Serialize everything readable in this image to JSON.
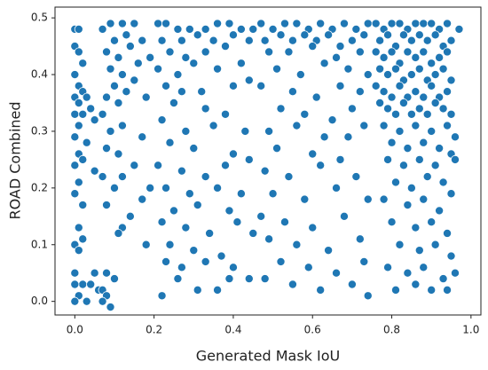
{
  "chart_data": {
    "type": "scatter",
    "x_label": "Generated Mask IoU",
    "y_label": "ROAD Combined",
    "color": "#1f77b4",
    "xlim": [
      -0.05,
      1.025
    ],
    "ylim": [
      -0.024,
      0.519
    ],
    "xticks": [
      {
        "value": 0.0,
        "label": "0.0"
      },
      0.2,
      0.4,
      0.6,
      0.8,
      {
        "value": 1.0,
        "label": "1.0"
      }
    ],
    "yticks": [
      {
        "value": 0.0,
        "label": "0.0"
      },
      0.1,
      0.2,
      0.3,
      0.4,
      0.5
    ],
    "x": [
      0.0,
      0.01,
      0.0,
      0.01,
      0.02,
      0.0,
      0.01,
      0.02,
      0.0,
      0.03,
      0.01,
      0.04,
      0.0,
      0.02,
      0.05,
      0.01,
      0.0,
      0.03,
      0.01,
      0.02,
      0.0,
      0.05,
      0.01,
      0.0,
      0.02,
      0.01,
      0.02,
      0.0,
      0.01,
      0.0,
      0.02,
      0.05,
      0.0,
      0.04,
      0.01,
      0.03,
      0.06,
      0.0,
      0.07,
      0.09,
      0.12,
      0.15,
      0.1,
      0.13,
      0.08,
      0.11,
      0.14,
      0.17,
      0.09,
      0.12,
      0.16,
      0.19,
      0.1,
      0.13,
      0.18,
      0.08,
      0.11,
      0.15,
      0.07,
      0.09,
      0.12,
      0.17,
      0.08,
      0.11,
      0.15,
      0.07,
      0.1,
      0.12,
      0.19,
      0.08,
      0.14,
      0.17,
      0.12,
      0.11,
      0.18,
      0.08,
      0.1,
      0.07,
      0.08,
      0.09,
      0.07,
      0.21,
      0.23,
      0.26,
      0.29,
      0.33,
      0.36,
      0.39,
      0.42,
      0.45,
      0.22,
      0.27,
      0.31,
      0.35,
      0.4,
      0.44,
      0.24,
      0.28,
      0.33,
      0.38,
      0.21,
      0.26,
      0.3,
      0.36,
      0.42,
      0.23,
      0.27,
      0.32,
      0.4,
      0.44,
      0.25,
      0.33,
      0.38,
      0.22,
      0.28,
      0.35,
      0.43,
      0.24,
      0.3,
      0.4,
      0.21,
      0.27,
      0.33,
      0.38,
      0.44,
      0.23,
      0.29,
      0.36,
      0.42,
      0.25,
      0.31,
      0.39,
      0.22,
      0.28,
      0.34,
      0.41,
      0.45,
      0.24,
      0.3,
      0.37,
      0.23,
      0.27,
      0.33,
      0.4,
      0.44,
      0.26,
      0.31,
      0.22,
      0.36,
      0.39,
      0.47,
      0.5,
      0.53,
      0.56,
      0.59,
      0.62,
      0.65,
      0.68,
      0.71,
      0.74,
      0.48,
      0.52,
      0.55,
      0.58,
      0.61,
      0.64,
      0.67,
      0.7,
      0.73,
      0.49,
      0.54,
      0.6,
      0.66,
      0.72,
      0.51,
      0.57,
      0.63,
      0.69,
      0.74,
      0.47,
      0.55,
      0.61,
      0.67,
      0.72,
      0.52,
      0.58,
      0.65,
      0.7,
      0.49,
      0.56,
      0.63,
      0.69,
      0.73,
      0.51,
      0.6,
      0.67,
      0.48,
      0.54,
      0.62,
      0.71,
      0.5,
      0.58,
      0.66,
      0.74,
      0.47,
      0.53,
      0.6,
      0.68,
      0.49,
      0.56,
      0.64,
      0.72,
      0.52,
      0.59,
      0.66,
      0.73,
      0.48,
      0.55,
      0.62,
      0.7,
      0.74,
      0.76,
      0.78,
      0.8,
      0.82,
      0.84,
      0.86,
      0.88,
      0.9,
      0.92,
      0.94,
      0.97,
      0.77,
      0.79,
      0.81,
      0.83,
      0.85,
      0.87,
      0.89,
      0.91,
      0.93,
      0.95,
      0.76,
      0.78,
      0.8,
      0.82,
      0.84,
      0.86,
      0.88,
      0.9,
      0.92,
      0.94,
      0.77,
      0.79,
      0.81,
      0.83,
      0.85,
      0.87,
      0.89,
      0.91,
      0.93,
      0.95,
      0.76,
      0.78,
      0.8,
      0.82,
      0.84,
      0.86,
      0.88,
      0.9,
      0.92,
      0.94,
      0.77,
      0.79,
      0.81,
      0.83,
      0.85,
      0.87,
      0.89,
      0.91,
      0.93,
      0.95,
      0.78,
      0.82,
      0.86,
      0.9,
      0.94,
      0.96,
      0.8,
      0.84,
      0.88,
      0.92,
      0.95,
      0.79,
      0.83,
      0.87,
      0.91,
      0.96,
      0.81,
      0.85,
      0.89,
      0.93,
      0.78,
      0.84,
      0.88,
      0.92,
      0.95,
      0.8,
      0.86,
      0.9,
      0.94,
      0.82,
      0.87,
      0.91,
      0.95,
      0.79,
      0.84,
      0.88,
      0.93,
      0.96,
      0.81,
      0.86,
      0.9,
      0.94
    ],
    "values": [
      0.48,
      0.48,
      0.45,
      0.44,
      0.42,
      0.4,
      0.38,
      0.37,
      0.36,
      0.36,
      0.35,
      0.34,
      0.33,
      0.33,
      0.32,
      0.31,
      0.29,
      0.28,
      0.26,
      0.25,
      0.24,
      0.23,
      0.21,
      0.19,
      0.17,
      0.13,
      0.11,
      0.1,
      0.09,
      0.05,
      0.03,
      0.05,
      0.03,
      0.03,
      0.01,
      0.0,
      0.02,
      0.0,
      0.48,
      0.49,
      0.49,
      0.49,
      0.46,
      0.47,
      0.44,
      0.43,
      0.45,
      0.46,
      0.41,
      0.4,
      0.42,
      0.43,
      0.38,
      0.37,
      0.36,
      0.36,
      0.35,
      0.39,
      0.33,
      0.3,
      0.31,
      0.29,
      0.27,
      0.26,
      0.24,
      0.22,
      0.2,
      0.22,
      0.2,
      0.17,
      0.15,
      0.18,
      0.13,
      0.12,
      0.1,
      0.05,
      0.04,
      0.02,
      0.01,
      -0.01,
      0.0,
      0.49,
      0.49,
      0.48,
      0.48,
      0.48,
      0.49,
      0.49,
      0.48,
      0.48,
      0.46,
      0.46,
      0.47,
      0.46,
      0.47,
      0.46,
      0.44,
      0.43,
      0.44,
      0.45,
      0.41,
      0.4,
      0.42,
      0.41,
      0.42,
      0.38,
      0.37,
      0.37,
      0.38,
      0.39,
      0.35,
      0.34,
      0.33,
      0.32,
      0.3,
      0.31,
      0.3,
      0.28,
      0.27,
      0.26,
      0.24,
      0.23,
      0.22,
      0.24,
      0.25,
      0.2,
      0.19,
      0.2,
      0.19,
      0.16,
      0.17,
      0.16,
      0.14,
      0.13,
      0.12,
      0.14,
      0.12,
      0.1,
      0.09,
      0.08,
      0.07,
      0.06,
      0.07,
      0.06,
      0.04,
      0.04,
      0.02,
      0.01,
      0.02,
      0.04,
      0.49,
      0.48,
      0.49,
      0.49,
      0.48,
      0.49,
      0.48,
      0.49,
      0.48,
      0.49,
      0.46,
      0.47,
      0.46,
      0.47,
      0.46,
      0.47,
      0.45,
      0.46,
      0.47,
      0.44,
      0.44,
      0.45,
      0.43,
      0.44,
      0.41,
      0.4,
      0.42,
      0.41,
      0.4,
      0.38,
      0.37,
      0.36,
      0.38,
      0.37,
      0.34,
      0.33,
      0.32,
      0.34,
      0.3,
      0.31,
      0.29,
      0.29,
      0.31,
      0.27,
      0.26,
      0.25,
      0.23,
      0.22,
      0.24,
      0.22,
      0.19,
      0.18,
      0.2,
      0.18,
      0.15,
      0.14,
      0.13,
      0.15,
      0.11,
      0.1,
      0.09,
      0.11,
      0.07,
      0.06,
      0.05,
      0.07,
      0.04,
      0.03,
      0.02,
      0.03,
      0.01,
      0.49,
      0.48,
      0.49,
      0.49,
      0.48,
      0.49,
      0.49,
      0.49,
      0.48,
      0.49,
      0.48,
      0.46,
      0.47,
      0.45,
      0.47,
      0.46,
      0.47,
      0.46,
      0.47,
      0.45,
      0.46,
      0.44,
      0.43,
      0.44,
      0.42,
      0.44,
      0.43,
      0.44,
      0.42,
      0.43,
      0.44,
      0.41,
      0.4,
      0.41,
      0.39,
      0.4,
      0.41,
      0.39,
      0.4,
      0.41,
      0.39,
      0.38,
      0.37,
      0.36,
      0.38,
      0.36,
      0.37,
      0.36,
      0.38,
      0.36,
      0.37,
      0.35,
      0.34,
      0.33,
      0.35,
      0.33,
      0.34,
      0.33,
      0.35,
      0.34,
      0.33,
      0.31,
      0.3,
      0.31,
      0.3,
      0.31,
      0.29,
      0.28,
      0.27,
      0.28,
      0.27,
      0.26,
      0.25,
      0.24,
      0.25,
      0.24,
      0.25,
      0.21,
      0.2,
      0.22,
      0.21,
      0.18,
      0.17,
      0.18,
      0.16,
      0.19,
      0.14,
      0.13,
      0.14,
      0.12,
      0.1,
      0.09,
      0.1,
      0.08,
      0.06,
      0.05,
      0.06,
      0.04,
      0.05,
      0.02,
      0.03,
      0.02,
      0.02
    ]
  }
}
